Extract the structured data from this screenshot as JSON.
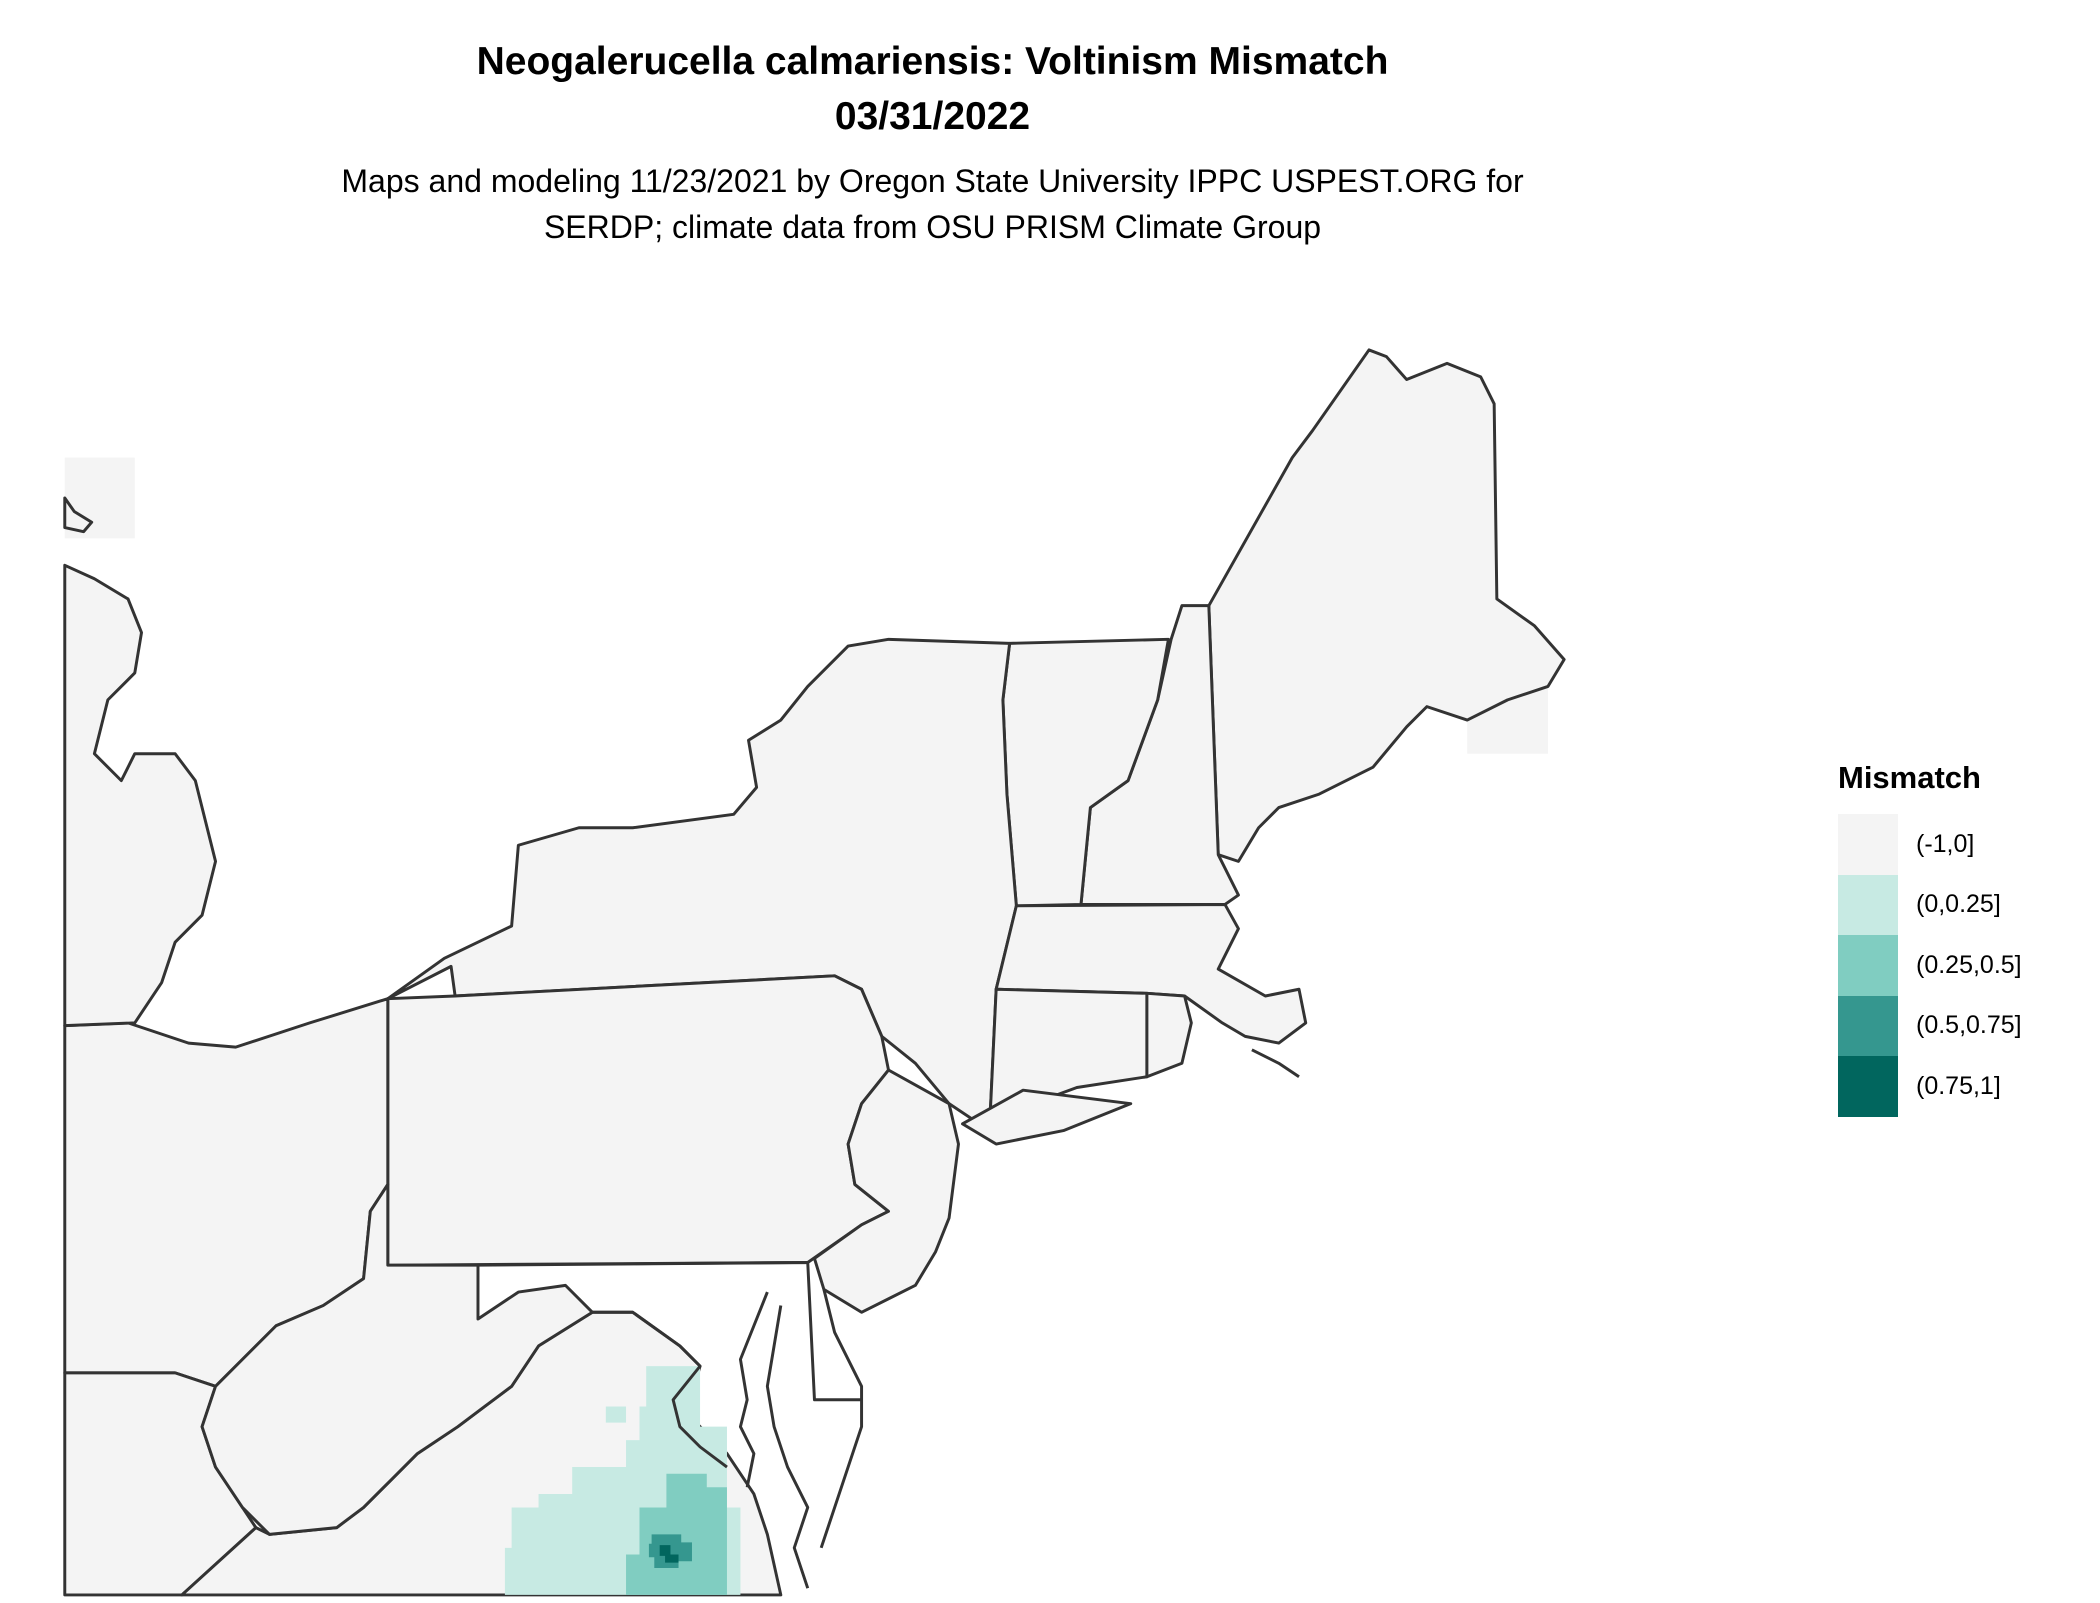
{
  "header": {
    "title": "Neogalerucella calmariensis: Voltinism Mismatch",
    "date": "03/31/2022",
    "subtitle_line1": "Maps and modeling 11/23/2021 by Oregon State University IPPC USPEST.ORG for",
    "subtitle_line2": "SERDP; climate data from OSU PRISM Climate Group"
  },
  "map": {
    "land_color": "#f4f4f4",
    "border_color": "#333333"
  },
  "legend": {
    "title": "Mismatch",
    "bins": [
      {
        "label": "(-1,0]",
        "color": "#f4f4f4"
      },
      {
        "label": "(0,0.25]",
        "color": "#c7eae3"
      },
      {
        "label": "(0.25,0.5]",
        "color": "#80cdc1"
      },
      {
        "label": "(0.5,0.75]",
        "color": "#35978f"
      },
      {
        "label": "(0.75,1]",
        "color": "#01665e"
      }
    ]
  }
}
